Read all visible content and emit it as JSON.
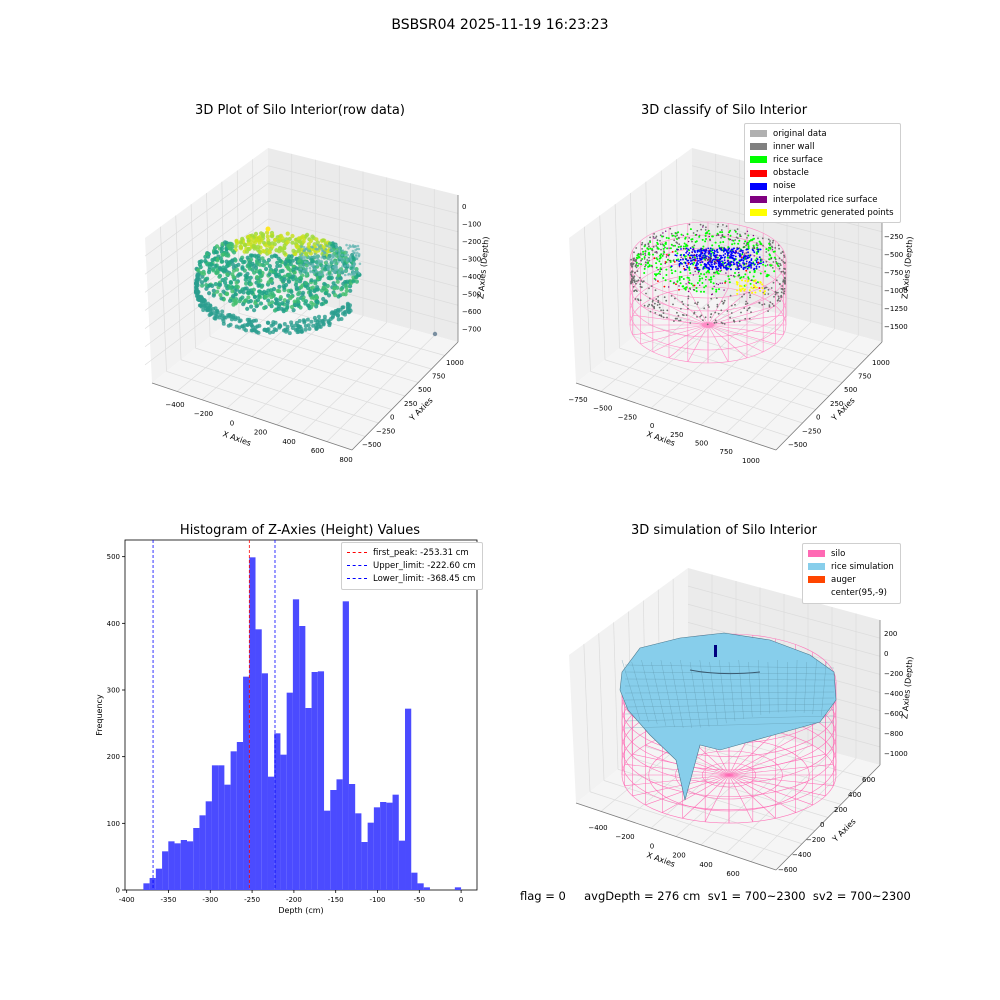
{
  "suptitle": "BSBSR04 2025-11-19 16:23:23",
  "panels": {
    "p1": {
      "title": "3D Plot of Silo Interior(row data)",
      "xlabel": "X Axies",
      "ylabel": "Y Axies",
      "zlabel": "Z Axies (Depth)",
      "xticks": [
        "−400",
        "−200",
        "0",
        "200",
        "400",
        "600",
        "800"
      ],
      "yticks": [
        "−500",
        "−250",
        "0",
        "250",
        "500",
        "750",
        "1000"
      ],
      "zticks": [
        "0",
        "−100",
        "−200",
        "−300",
        "−400",
        "−500",
        "−600",
        "−700"
      ]
    },
    "p2": {
      "title": "3D classify of Silo Interior",
      "xlabel": "X Axies",
      "ylabel": "Y Axies",
      "zlabel": "Z Axies (Depth)",
      "xticks": [
        "−750",
        "−500",
        "−250",
        "0",
        "250",
        "500",
        "750",
        "1000"
      ],
      "yticks": [
        "−500",
        "−250",
        "0",
        "250",
        "500",
        "750",
        "1000"
      ],
      "zticks": [
        "250",
        "0",
        "−250",
        "−500",
        "−750",
        "−1000",
        "−1250",
        "−1500"
      ],
      "legend": [
        {
          "label": "original data",
          "color": "#b0b0b0"
        },
        {
          "label": "inner wall",
          "color": "#808080"
        },
        {
          "label": "rice surface",
          "color": "#00ff00"
        },
        {
          "label": "obstacle",
          "color": "#ff0000"
        },
        {
          "label": "noise",
          "color": "#0000ff"
        },
        {
          "label": "interpolated rice surface",
          "color": "#800080"
        },
        {
          "label": "symmetric generated points",
          "color": "#ffff00"
        }
      ]
    },
    "p4": {
      "title": "3D simulation of Silo Interior",
      "xlabel": "X Axies",
      "ylabel": "Y Axies",
      "zlabel": "Z Axies (Depth)",
      "xticks": [
        "−400",
        "−200",
        "0",
        "200",
        "400",
        "600"
      ],
      "yticks": [
        "−600",
        "−400",
        "−200",
        "0",
        "200",
        "400",
        "600"
      ],
      "zticks": [
        "200",
        "0",
        "−200",
        "−400",
        "−600",
        "−800",
        "−1000"
      ],
      "legend": [
        {
          "label": "silo",
          "color": "#ff69b4"
        },
        {
          "label": "rice simulation",
          "color": "#87ceeb"
        },
        {
          "label": "auger",
          "color": "#ff4500"
        },
        {
          "label": "center(95,-9)",
          "color": "#ffffff"
        }
      ]
    }
  },
  "chart_data": {
    "type": "bar",
    "title": "Histogram of Z-Axies (Height) Values",
    "xlabel": "Depth (cm)",
    "ylabel": "Frequency",
    "xlim": [
      -402,
      19
    ],
    "ylim": [
      0,
      525
    ],
    "xticks": [
      -400,
      -350,
      -300,
      -250,
      -200,
      -150,
      -100,
      -50,
      0
    ],
    "yticks": [
      0,
      100,
      200,
      300,
      400,
      500
    ],
    "bar_color": "#4b4bff",
    "bin_start": -380,
    "bin_width": 7.45,
    "values": [
      10,
      18,
      32,
      58,
      73,
      70,
      75,
      73,
      93,
      112,
      133,
      187,
      187,
      158,
      208,
      222,
      320,
      499,
      391,
      325,
      170,
      235,
      203,
      296,
      436,
      396,
      273,
      327,
      328,
      119,
      150,
      166,
      433,
      159,
      115,
      72,
      101,
      124,
      132,
      131,
      143,
      74,
      272,
      26,
      10,
      4,
      0,
      0,
      0,
      0,
      4
    ],
    "vlines": [
      {
        "label": "first_peak: -253.31 cm",
        "x": -253.31,
        "color": "#ff0000"
      },
      {
        "label": "Upper_limit: -222.60 cm",
        "x": -222.6,
        "color": "#0000ff"
      },
      {
        "label": "Lower_limit: -368.45 cm",
        "x": -368.45,
        "color": "#0000ff"
      }
    ]
  },
  "footer": "flag = 0     avgDepth = 276 cm  sv1 = 700~2300  sv2 = 700~2300"
}
